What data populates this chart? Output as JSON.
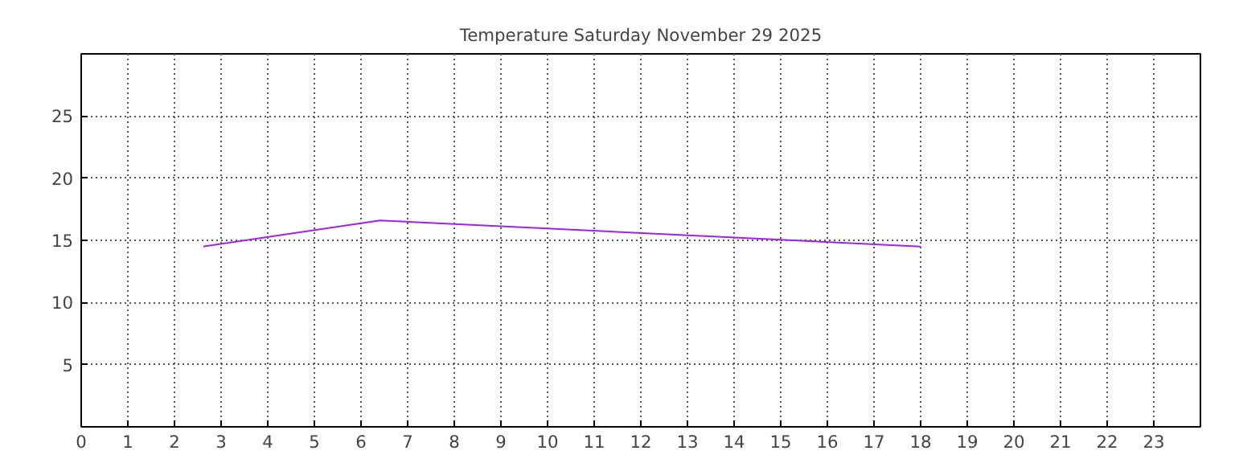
{
  "chart_data": {
    "type": "line",
    "title": "Temperature Saturday November 29 2025",
    "x": [
      2.62,
      6.41,
      18.0
    ],
    "series": [
      {
        "color": "#a020f0",
        "values": [
          14.5,
          16.6,
          14.5
        ]
      }
    ],
    "xlim": [
      0,
      24
    ],
    "xticks": [
      0,
      1,
      2,
      3,
      4,
      5,
      6,
      7,
      8,
      9,
      10,
      11,
      12,
      13,
      14,
      15,
      16,
      17,
      18,
      19,
      20,
      21,
      22,
      23
    ],
    "ylim": [
      0,
      30
    ],
    "yticks": [
      5,
      10,
      15,
      20,
      25
    ],
    "grid": true,
    "line_style": "solid"
  }
}
